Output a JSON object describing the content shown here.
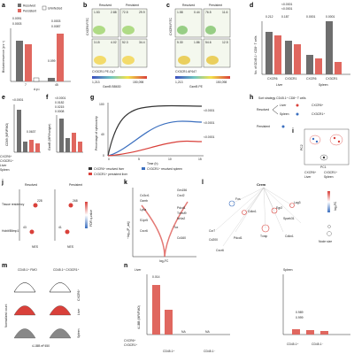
{
  "panels": {
    "a": {
      "letter": "a",
      "ylabel": "Bioluminescence (p s⁻¹)",
      "xlabel": "d.p.i.",
      "xticks": [
        "7",
        "45"
      ],
      "legend": [
        "Resolved",
        "Persistent",
        "Uninfected"
      ],
      "pvals": [
        "0.0091",
        "0.0003",
        "0.0003",
        "0.0087",
        "0.099"
      ]
    },
    "b": {
      "letter": "b",
      "col_resolved": "Resolved",
      "col_persistent": "Persistent",
      "xlabel": "CX3CR1 PE-Cy7",
      "ylabel": "CXCR6 FITC",
      "quads": [
        "1.53",
        "2.88",
        "72.5",
        "29.9",
        "3.15",
        "4.02",
        "52.3",
        "34.4"
      ],
      "scale": [
        "1,213",
        "35,366",
        "93,694",
        "150,098"
      ],
      "scale_label": "GzmB BB630"
    },
    "c": {
      "letter": "c",
      "col_resolved": "Resolved",
      "col_persistent": "Persistent",
      "xlabel": "CX3CR1 AF647",
      "ylabel": "CXCR6 FITC",
      "quads": [
        "1.58",
        "0.44",
        "76.5",
        "11.6",
        "5.30",
        "1.86",
        "54.6",
        "12.5"
      ],
      "scale": [
        "1,213",
        "36,363",
        "93,694",
        "150,098"
      ],
      "scale_label": "GzmB PE"
    },
    "d": {
      "letter": "d",
      "ylabel": "No. of CD45.1⁺ CD8⁺ T cells",
      "pvals": [
        "<0.0001",
        "<0.0001",
        "0.212",
        "0.187",
        "0.0001",
        "0.0001",
        "0.0018"
      ],
      "groups": [
        "Liver",
        "Spleen"
      ],
      "cats": [
        "CXCR6",
        "CX3CR1",
        "CXCR6",
        "CX3CR1"
      ]
    },
    "e": {
      "letter": "e",
      "ylabel": "CD69 (MFI/FMO)",
      "pvals": [
        "<0.0001",
        "0.0637"
      ],
      "rows": [
        "CXCR6⁺",
        "CX3CR1⁺",
        "Liver",
        "Spleen"
      ]
    },
    "f": {
      "letter": "f",
      "ylabel": "GzmB (MFI/Isotype)",
      "pvals": [
        "<0.0001",
        "0.0182",
        "0.0215",
        "0.0008"
      ]
    },
    "g": {
      "letter": "g",
      "ylabel": "Percentage of cytotoxicity",
      "xlabel": "Time (h)",
      "xticks": [
        "0",
        "5",
        "10",
        "15"
      ],
      "yticks": [
        "0",
        "20",
        "40",
        "60",
        "80",
        "100"
      ],
      "pvals": [
        "<0.0001",
        "<0.0001",
        "<0.0001"
      ],
      "legend": [
        "CXCR6⁺ resolved liver",
        "CX3CR1⁺ resolved spleen",
        "CX3CR1⁺ persistent liver"
      ]
    },
    "h": {
      "letter": "h",
      "title": "Sort strategy CD45.1⁺ CD8⁺ T cells",
      "items": [
        "Resolved",
        "Liver",
        "Spleen",
        "Persistent",
        "CXCR6⁺",
        "CX3CR1⁺"
      ]
    },
    "i": {
      "letter": "i",
      "xlabel": "PC1",
      "ylabel": "PC2",
      "legend": [
        "CXCR6⁺",
        "CX3CR1⁺",
        "Liver",
        "Spleen"
      ]
    },
    "j": {
      "letter": "j",
      "col_resolved": "Resolved",
      "col_persistent": "Persistent",
      "rows": [
        "Tissue residency",
        "Hobit/Blimp1"
      ],
      "xlabel": "NES",
      "nums": [
        "228",
        "43",
        "268",
        "41"
      ],
      "colorbar": "FDR q-value"
    },
    "k": {
      "letter": "k",
      "xlabel": "log₂FC",
      "ylabel": "−log₁₀(P_adj)",
      "genes_up": [
        "Gm156",
        "Cxcl2",
        "Pdcd1",
        "Tnfrsf9",
        "Nr4a2",
        "Tox",
        "Cd160"
      ],
      "genes_dn": [
        "Cx3cr1",
        "Gzmb",
        "Ly6a",
        "S1pr5",
        "Cxcr6"
      ]
    },
    "l": {
      "letter": "l",
      "hub": "Crem",
      "colorbar": "log₂FC",
      "size": "Node size",
      "genes": [
        "Fos",
        "Cdkn1",
        "Egr2",
        "Lag3",
        "Spark31",
        "Ccr7",
        "Pdcd1",
        "Txnip",
        "Cdkn1",
        "Cxcr6",
        "Gzma",
        "Cd200",
        "Tnfrsf9",
        "Sh2d2",
        "Pdcd1",
        "Tcrc"
      ]
    },
    "m": {
      "letter": "m",
      "cols": [
        "CD45.1⁺ FMO",
        "CD45.1⁺ CX3CR1⁺"
      ],
      "rows": [
        "CXCR6⁺",
        "Liver",
        "Spleen"
      ],
      "xlabel": "4-1BB eF450",
      "ylabel": "Normalized count"
    },
    "n": {
      "letter": "n",
      "ylabel": "4-1BB (MFI/FMO)",
      "group1": "Liver",
      "group2": "Spleen",
      "pvals": [
        "0.014",
        "0.989",
        "0.999"
      ],
      "xrows": [
        "CXCR6⁺",
        "CX3CR1⁺",
        "CD45.1⁺",
        "CD45.1⁻"
      ],
      "na": "NA"
    }
  },
  "colors": {
    "resolved": "#6e6e6e",
    "persistent": "#e0675f",
    "uninfected": "#ffffff",
    "blue": "#3b6fbf",
    "red": "#d9403a"
  }
}
